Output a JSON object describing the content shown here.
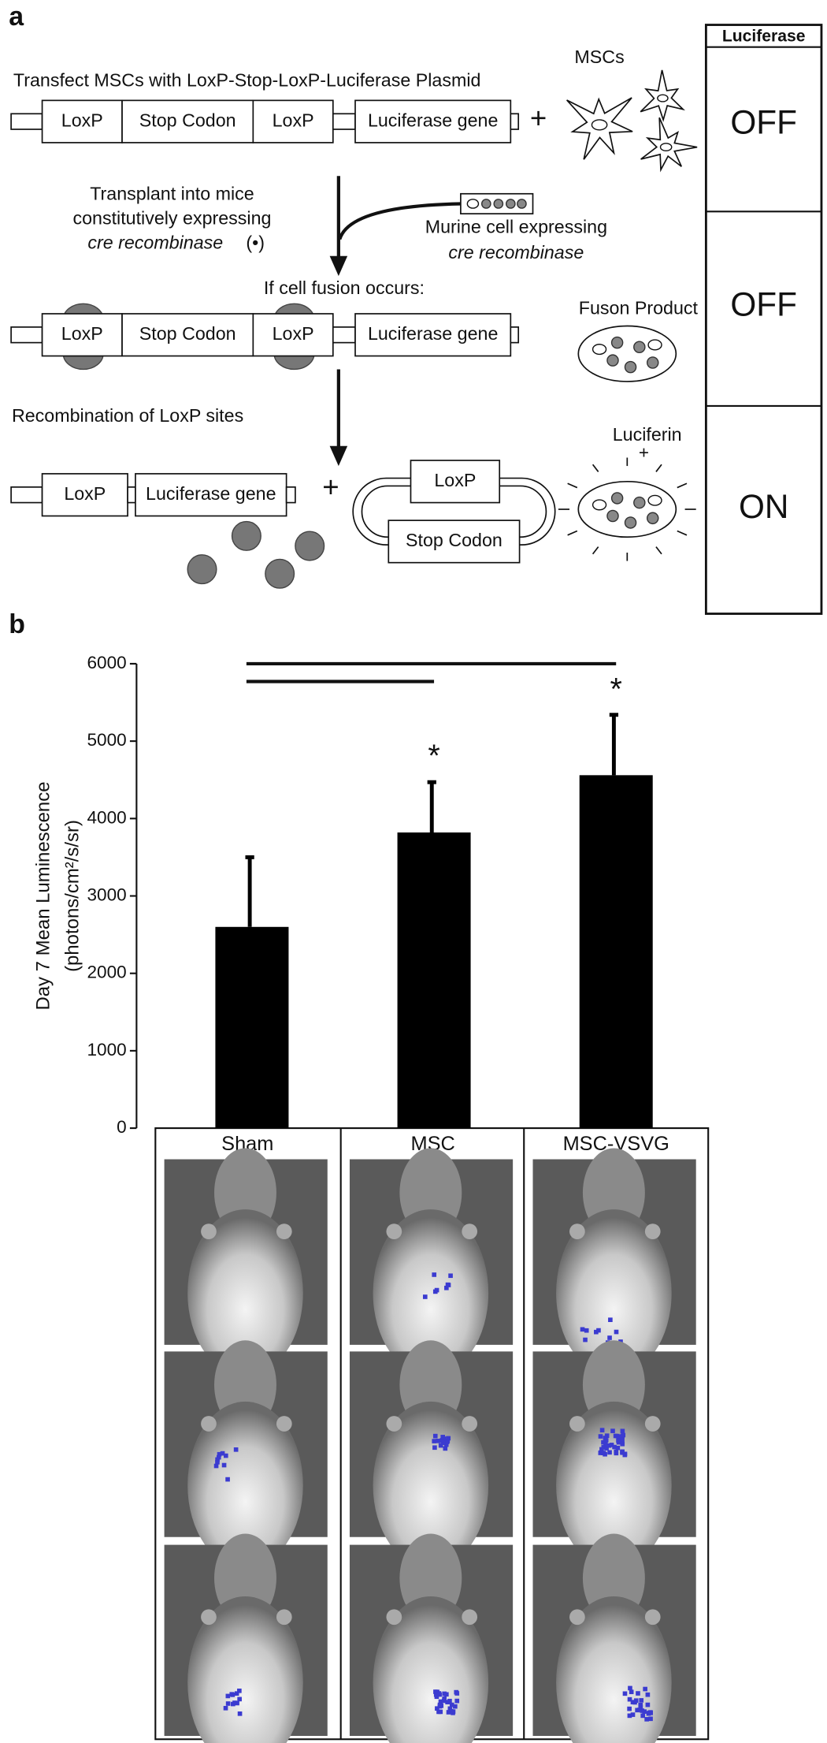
{
  "panel_a": {
    "label": "a",
    "title": "Transfect MSCs with LoxP-Stop-LoxP-Luciferase Plasmid",
    "segments": {
      "loxp": "LoxP",
      "stop": "Stop Codon",
      "luc": "Luciferase gene"
    },
    "plus": "+",
    "msc_label": "MSCs",
    "transplant": [
      "Transplant into mice",
      "constitutively expressing",
      "cre recombinase",
      "(•)"
    ],
    "murine": [
      "Murine cell expressing",
      "cre recombinase"
    ],
    "fusion_step": "If cell fusion occurs:",
    "fusion_product": "Fuson Product",
    "recombination": "Recombination of LoxP sites",
    "luciferin": "Luciferin",
    "table": {
      "header": "Luciferase",
      "rows": [
        "OFF",
        "OFF",
        "ON"
      ]
    }
  },
  "panel_b": {
    "label": "b"
  },
  "chart_data": {
    "type": "bar",
    "y_label": [
      "Day 7 Mean Luminescence",
      "(photons/cm²/s/sr)"
    ],
    "categories": [
      "Sham",
      "MSC",
      "MSC-VSVG"
    ],
    "values": [
      2600,
      3820,
      4560
    ],
    "errors": [
      900,
      650,
      780
    ],
    "color": "#000000",
    "ylim": [
      0,
      6000
    ],
    "yticks": [
      0,
      1000,
      2000,
      3000,
      4000,
      5000,
      6000
    ],
    "annotations": [
      "*",
      "*"
    ]
  }
}
